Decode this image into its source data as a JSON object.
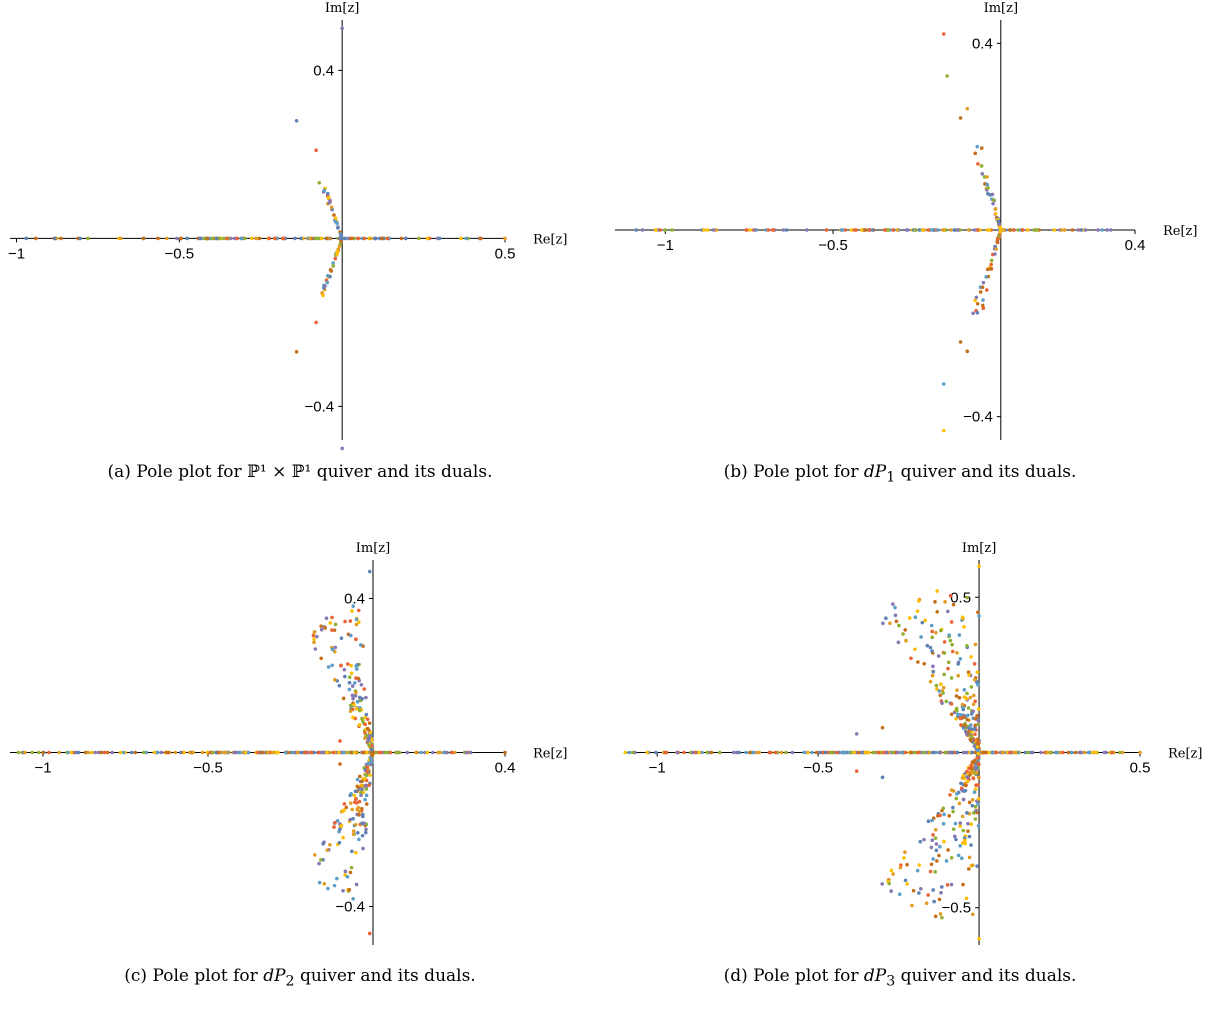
{
  "colors": [
    "#5e81b5",
    "#e19c24",
    "#8fb032",
    "#eb6235",
    "#8778b3",
    "#c56e1a",
    "#5d9ec7",
    "#ffbf00"
  ],
  "chart_data": [
    {
      "id": "a",
      "type": "scatter",
      "caption": "(a) Pole plot for ℙ¹ × ℙ¹ quiver and its duals.",
      "caption_label": "(a) Pole plot for",
      "caption_math": "ℙ¹ × ℙ¹",
      "caption_rest": "quiver and its duals.",
      "xlabel": "Re[z]",
      "ylabel": "Im[z]",
      "xlim": [
        -1.02,
        0.5
      ],
      "ylim": [
        -0.48,
        0.52
      ],
      "x_ticks": [
        {
          "v": -1,
          "label": "−1"
        },
        {
          "v": -0.5,
          "label": "−0.5"
        },
        {
          "v": 0.5,
          "label": "0.5"
        }
      ],
      "y_ticks": [
        {
          "v": 0.4,
          "label": "0.4"
        },
        {
          "v": -0.4,
          "label": "−0.4"
        }
      ],
      "real_axis_points": {
        "xmin": -1.0,
        "xmax": 0.45,
        "count": 120
      },
      "wedge": {
        "angle_deg": 115,
        "r_max": 0.15,
        "count": 60,
        "spread_deg": 3,
        "dense_near_origin": true
      },
      "outliers": [
        {
          "x": 0.0,
          "y": 0.5
        },
        {
          "x": 0.0,
          "y": -0.5
        },
        {
          "x": -0.14,
          "y": 0.28
        },
        {
          "x": -0.14,
          "y": -0.27
        },
        {
          "x": -0.08,
          "y": 0.21
        },
        {
          "x": -0.08,
          "y": -0.2
        },
        {
          "x": 0.5,
          "y": 0.0
        },
        {
          "x": -0.97,
          "y": 0.0
        }
      ]
    },
    {
      "id": "b",
      "type": "scatter",
      "caption": "(b) Pole plot for dP1 quiver and its duals.",
      "caption_label": "(b) Pole plot for",
      "caption_math_main": "dP",
      "caption_math_sub": "1",
      "caption_rest": "quiver and its duals.",
      "xlabel": "Re[z]",
      "ylabel": "Im[z]",
      "xlim": [
        -1.15,
        0.4
      ],
      "ylim": [
        -0.45,
        0.45
      ],
      "x_ticks": [
        {
          "v": -1,
          "label": "−1"
        },
        {
          "v": -0.5,
          "label": "−0.5"
        },
        {
          "v": 0.4,
          "label": "0.4"
        }
      ],
      "y_ticks": [
        {
          "v": 0.4,
          "label": "0.4"
        },
        {
          "v": -0.4,
          "label": "−0.4"
        }
      ],
      "real_axis_points": {
        "xmin": -1.1,
        "xmax": 0.35,
        "count": 140
      },
      "wedge": {
        "angle_deg": 112,
        "r_max": 0.2,
        "count": 100,
        "spread_deg": 5,
        "dense_near_origin": true
      },
      "outliers": [
        {
          "x": -0.17,
          "y": 0.42
        },
        {
          "x": -0.16,
          "y": 0.33
        },
        {
          "x": -0.17,
          "y": -0.33
        },
        {
          "x": -0.17,
          "y": -0.43
        },
        {
          "x": -0.1,
          "y": 0.26
        },
        {
          "x": -0.1,
          "y": -0.26
        },
        {
          "x": -0.12,
          "y": 0.24
        },
        {
          "x": -0.12,
          "y": -0.24
        }
      ]
    },
    {
      "id": "c",
      "type": "scatter",
      "caption": "(c) Pole plot for dP2 quiver and its duals.",
      "caption_label": "(c) Pole plot for",
      "caption_math_main": "dP",
      "caption_math_sub": "2",
      "caption_rest": "quiver and its duals.",
      "xlabel": "Re[z]",
      "ylabel": "Im[z]",
      "xlim": [
        -1.1,
        0.4
      ],
      "ylim": [
        -0.5,
        0.5
      ],
      "x_ticks": [
        {
          "v": -1,
          "label": "−1"
        },
        {
          "v": -0.5,
          "label": "−0.5"
        },
        {
          "v": 0.4,
          "label": "0.4"
        }
      ],
      "y_ticks": [
        {
          "v": 0.4,
          "label": "0.4"
        },
        {
          "v": -0.4,
          "label": "−0.4"
        }
      ],
      "real_axis_points": {
        "xmin": -1.1,
        "xmax": 0.3,
        "count": 260
      },
      "wedge": {
        "angle_deg": 110,
        "r_max": 0.38,
        "count": 320,
        "spread_deg": 14,
        "dense_near_origin": true
      },
      "outliers": [
        {
          "x": -0.01,
          "y": 0.47
        },
        {
          "x": -0.01,
          "y": -0.47
        },
        {
          "x": -0.06,
          "y": 0.38
        },
        {
          "x": -0.06,
          "y": -0.38
        },
        {
          "x": 0.4,
          "y": 0.0
        },
        {
          "x": -0.1,
          "y": 0.03
        },
        {
          "x": -0.1,
          "y": -0.03
        }
      ]
    },
    {
      "id": "d",
      "type": "scatter",
      "caption": "(d) Pole plot for dP3 quiver and its duals.",
      "caption_label": "(d) Pole plot for",
      "caption_math_main": "dP",
      "caption_math_sub": "3",
      "caption_rest": "quiver and its duals.",
      "xlabel": "Re[z]",
      "ylabel": "Im[z]",
      "xlim": [
        -1.1,
        0.5
      ],
      "ylim": [
        -0.62,
        0.62
      ],
      "x_ticks": [
        {
          "v": -1,
          "label": "−1"
        },
        {
          "v": -0.5,
          "label": "−0.5"
        },
        {
          "v": 0.5,
          "label": "0.5"
        }
      ],
      "y_ticks": [
        {
          "v": 0.5,
          "label": "0.5"
        },
        {
          "v": -0.5,
          "label": "−0.5"
        }
      ],
      "real_axis_points": {
        "xmin": -1.1,
        "xmax": 0.45,
        "count": 300
      },
      "wedge": {
        "angle_deg": 108,
        "r_max": 0.55,
        "count": 460,
        "spread_deg": 18,
        "dense_near_origin": true
      },
      "outliers": [
        {
          "x": 0.0,
          "y": 0.6
        },
        {
          "x": 0.0,
          "y": -0.6
        },
        {
          "x": -0.13,
          "y": 0.52
        },
        {
          "x": -0.12,
          "y": -0.52
        },
        {
          "x": -0.38,
          "y": 0.06
        },
        {
          "x": -0.38,
          "y": -0.06
        },
        {
          "x": -0.3,
          "y": 0.08
        },
        {
          "x": -0.3,
          "y": -0.08
        },
        {
          "x": 0.5,
          "y": 0.0
        }
      ]
    }
  ]
}
